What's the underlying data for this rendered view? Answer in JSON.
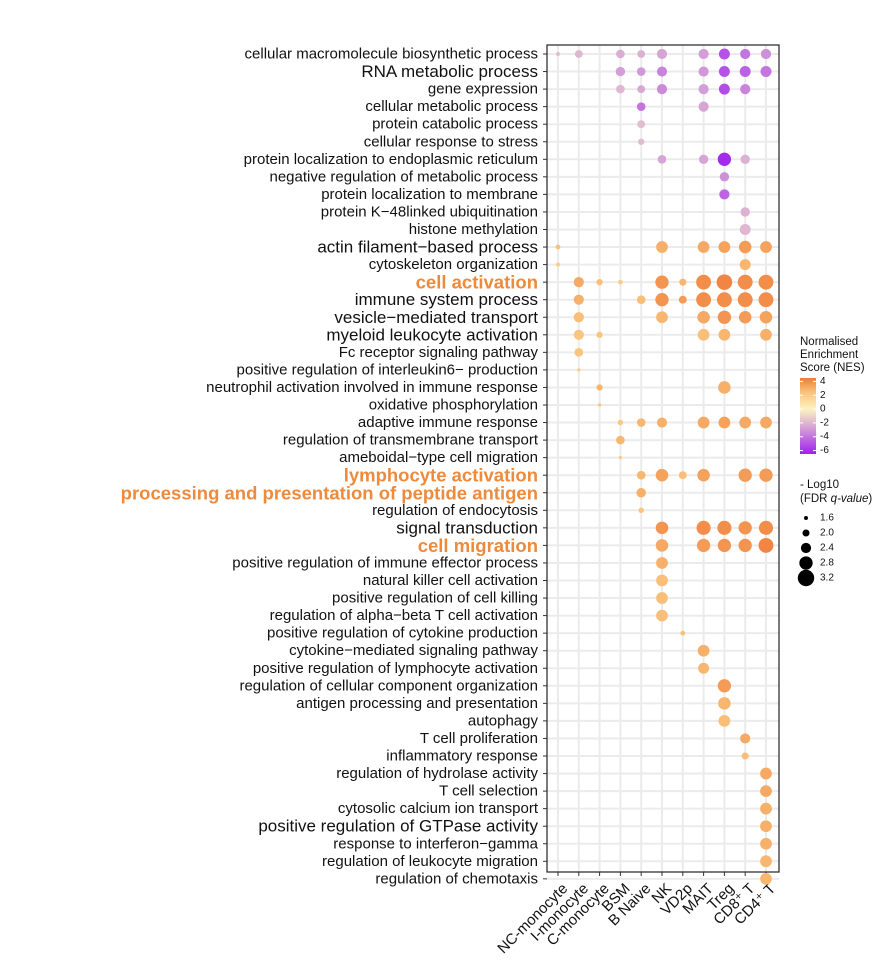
{
  "chart_data": {
    "type": "dot",
    "x_categories": [
      "NC-monocyte",
      "I-monocyte",
      "C-monocyte",
      "BSM",
      "B Naive",
      "NK",
      "VD2p",
      "MAIT",
      "Treg",
      "CD8⁺ T",
      "CD4⁺ T"
    ],
    "y_categories": [
      "cellular macromolecule biosynthetic process",
      "RNA metabolic process",
      "gene expression",
      "cellular metabolic process",
      "protein catabolic process",
      "cellular response to stress",
      "protein localization to endoplasmic reticulum",
      "negative regulation of metabolic process",
      "protein localization to membrane",
      "protein K−48linked ubiquitination",
      "histone methylation",
      "actin filament−based process",
      "cytoskeleton organization",
      "cell activation",
      "immune system process",
      "vesicle−mediated transport",
      "myeloid leukocyte activation",
      "Fc receptor signaling pathway",
      "positive regulation of interleukin6− production",
      "neutrophil activation involved in immune response",
      "oxidative phosphorylation",
      "adaptive immune response",
      "regulation of transmembrane transport",
      "ameboidal−type cell migration",
      "lymphocyte activation",
      "processing and presentation of peptide antigen",
      "regulation of endocytosis",
      "signal transduction",
      "cell migration",
      "positive regulation of immune effector process",
      "natural killer cell activation",
      "positive regulation of cell killing",
      "regulation of alpha−beta T cell activation",
      "positive regulation of cytokine production",
      "cytokine−mediated signaling pathway",
      "positive regulation of lymphocyte activation",
      "regulation of cellular component organization",
      "antigen processing and presentation",
      "autophagy",
      "T cell proliferation",
      "inflammatory response",
      "regulation of hydrolase activity",
      "T cell selection",
      "cytosolic calcium ion transport",
      "positive regulation of GTPase activity",
      "response to interferon−gamma",
      "regulation of leukocyte migration",
      "regulation of chemotaxis"
    ],
    "highlighted_terms": [
      "cell activation",
      "lymphocyte activation",
      "processing and presentation of peptide antigen",
      "cell migration"
    ],
    "legend": {
      "color_title": [
        "Normalised",
        "Enrichment",
        "Score (NES)"
      ],
      "color_ticks": [
        4,
        2,
        0,
        -2,
        -4,
        -6
      ],
      "color_range": [
        -6.5,
        4.5
      ],
      "size_title_prefix": "- Log10",
      "size_title_open": "(FDR ",
      "size_title_italic": "q-value",
      "size_title_close": ")",
      "size_ticks": [
        "1.6",
        "2.0",
        "2.4",
        "2.8",
        "3.2"
      ]
    },
    "colors": {
      "high": "#f07b3a",
      "mid_high": "#f9c27a",
      "zero": "#fdf3c2",
      "mid_low": "#d8a8d4",
      "low": "#a020f0",
      "highlight_label": "#ee8a3c",
      "grid": "#ebebeb"
    },
    "points": [
      {
        "y": 0,
        "x": 0,
        "nes": -1.8,
        "size": 1.4
      },
      {
        "y": 0,
        "x": 1,
        "nes": -2.0,
        "size": 1.9
      },
      {
        "y": 0,
        "x": 3,
        "nes": -2.3,
        "size": 2.0
      },
      {
        "y": 0,
        "x": 4,
        "nes": -2.2,
        "size": 1.9
      },
      {
        "y": 0,
        "x": 5,
        "nes": -2.6,
        "size": 2.2
      },
      {
        "y": 0,
        "x": 7,
        "nes": -2.8,
        "size": 2.2
      },
      {
        "y": 0,
        "x": 8,
        "nes": -5.0,
        "size": 2.3
      },
      {
        "y": 0,
        "x": 9,
        "nes": -4.0,
        "size": 2.2
      },
      {
        "y": 0,
        "x": 10,
        "nes": -3.2,
        "size": 2.2
      },
      {
        "y": 1,
        "x": 3,
        "nes": -2.8,
        "size": 2.1
      },
      {
        "y": 1,
        "x": 4,
        "nes": -3.0,
        "size": 2.0
      },
      {
        "y": 1,
        "x": 5,
        "nes": -3.6,
        "size": 2.2
      },
      {
        "y": 1,
        "x": 7,
        "nes": -3.0,
        "size": 2.2
      },
      {
        "y": 1,
        "x": 8,
        "nes": -5.0,
        "size": 2.3
      },
      {
        "y": 1,
        "x": 9,
        "nes": -4.6,
        "size": 2.3
      },
      {
        "y": 1,
        "x": 10,
        "nes": -4.0,
        "size": 2.3
      },
      {
        "y": 2,
        "x": 3,
        "nes": -2.0,
        "size": 2.0
      },
      {
        "y": 2,
        "x": 4,
        "nes": -2.5,
        "size": 1.9
      },
      {
        "y": 2,
        "x": 5,
        "nes": -3.4,
        "size": 2.2
      },
      {
        "y": 2,
        "x": 7,
        "nes": -2.8,
        "size": 2.2
      },
      {
        "y": 2,
        "x": 8,
        "nes": -5.2,
        "size": 2.3
      },
      {
        "y": 2,
        "x": 9,
        "nes": -3.6,
        "size": 2.2
      },
      {
        "y": 3,
        "x": 4,
        "nes": -4.0,
        "size": 2.0
      },
      {
        "y": 3,
        "x": 7,
        "nes": -2.6,
        "size": 2.2
      },
      {
        "y": 4,
        "x": 4,
        "nes": -1.8,
        "size": 1.9
      },
      {
        "y": 5,
        "x": 4,
        "nes": -1.9,
        "size": 1.7
      },
      {
        "y": 6,
        "x": 5,
        "nes": -2.6,
        "size": 2.0
      },
      {
        "y": 6,
        "x": 7,
        "nes": -2.6,
        "size": 2.1
      },
      {
        "y": 6,
        "x": 8,
        "nes": -6.2,
        "size": 2.6
      },
      {
        "y": 6,
        "x": 9,
        "nes": -2.2,
        "size": 2.1
      },
      {
        "y": 7,
        "x": 8,
        "nes": -3.2,
        "size": 2.1
      },
      {
        "y": 8,
        "x": 8,
        "nes": -4.5,
        "size": 2.2
      },
      {
        "y": 9,
        "x": 9,
        "nes": -2.2,
        "size": 2.1
      },
      {
        "y": 10,
        "x": 9,
        "nes": -2.0,
        "size": 2.3
      },
      {
        "y": 11,
        "x": 0,
        "nes": 2.5,
        "size": 1.5
      },
      {
        "y": 11,
        "x": 5,
        "nes": 3.0,
        "size": 2.4
      },
      {
        "y": 11,
        "x": 7,
        "nes": 3.2,
        "size": 2.4
      },
      {
        "y": 11,
        "x": 8,
        "nes": 3.4,
        "size": 2.4
      },
      {
        "y": 11,
        "x": 9,
        "nes": 3.6,
        "size": 2.5
      },
      {
        "y": 11,
        "x": 10,
        "nes": 3.4,
        "size": 2.4
      },
      {
        "y": 12,
        "x": 0,
        "nes": 2.0,
        "size": 1.4
      },
      {
        "y": 12,
        "x": 9,
        "nes": 2.8,
        "size": 2.3
      },
      {
        "y": 13,
        "x": 1,
        "nes": 3.2,
        "size": 2.2
      },
      {
        "y": 13,
        "x": 2,
        "nes": 2.6,
        "size": 1.7
      },
      {
        "y": 13,
        "x": 3,
        "nes": 2.0,
        "size": 1.5
      },
      {
        "y": 13,
        "x": 5,
        "nes": 3.8,
        "size": 2.6
      },
      {
        "y": 13,
        "x": 6,
        "nes": 2.8,
        "size": 1.8
      },
      {
        "y": 13,
        "x": 7,
        "nes": 4.0,
        "size": 2.8
      },
      {
        "y": 13,
        "x": 8,
        "nes": 4.2,
        "size": 2.9
      },
      {
        "y": 13,
        "x": 9,
        "nes": 4.0,
        "size": 2.8
      },
      {
        "y": 13,
        "x": 10,
        "nes": 4.0,
        "size": 2.8
      },
      {
        "y": 14,
        "x": 1,
        "nes": 3.0,
        "size": 2.2
      },
      {
        "y": 14,
        "x": 4,
        "nes": 2.6,
        "size": 2.0
      },
      {
        "y": 14,
        "x": 5,
        "nes": 3.8,
        "size": 2.6
      },
      {
        "y": 14,
        "x": 6,
        "nes": 3.6,
        "size": 1.9
      },
      {
        "y": 14,
        "x": 7,
        "nes": 4.0,
        "size": 2.8
      },
      {
        "y": 14,
        "x": 8,
        "nes": 4.0,
        "size": 2.8
      },
      {
        "y": 14,
        "x": 9,
        "nes": 4.0,
        "size": 2.8
      },
      {
        "y": 14,
        "x": 10,
        "nes": 4.0,
        "size": 2.8
      },
      {
        "y": 15,
        "x": 1,
        "nes": 2.6,
        "size": 2.2
      },
      {
        "y": 15,
        "x": 5,
        "nes": 2.8,
        "size": 2.4
      },
      {
        "y": 15,
        "x": 7,
        "nes": 3.2,
        "size": 2.5
      },
      {
        "y": 15,
        "x": 8,
        "nes": 3.8,
        "size": 2.6
      },
      {
        "y": 15,
        "x": 9,
        "nes": 3.6,
        "size": 2.5
      },
      {
        "y": 15,
        "x": 10,
        "nes": 3.4,
        "size": 2.5
      },
      {
        "y": 16,
        "x": 1,
        "nes": 2.4,
        "size": 2.2
      },
      {
        "y": 16,
        "x": 2,
        "nes": 2.4,
        "size": 1.7
      },
      {
        "y": 16,
        "x": 7,
        "nes": 2.6,
        "size": 2.4
      },
      {
        "y": 16,
        "x": 8,
        "nes": 2.8,
        "size": 2.4
      },
      {
        "y": 16,
        "x": 10,
        "nes": 3.0,
        "size": 2.4
      },
      {
        "y": 17,
        "x": 1,
        "nes": 2.4,
        "size": 2.0
      },
      {
        "y": 18,
        "x": 1,
        "nes": 2.2,
        "size": 1.3
      },
      {
        "y": 19,
        "x": 2,
        "nes": 2.8,
        "size": 1.7
      },
      {
        "y": 19,
        "x": 8,
        "nes": 3.0,
        "size": 2.5
      },
      {
        "y": 20,
        "x": 2,
        "nes": 2.4,
        "size": 1.2
      },
      {
        "y": 21,
        "x": 3,
        "nes": 2.2,
        "size": 1.6
      },
      {
        "y": 21,
        "x": 4,
        "nes": 2.8,
        "size": 2.0
      },
      {
        "y": 21,
        "x": 5,
        "nes": 3.0,
        "size": 2.2
      },
      {
        "y": 21,
        "x": 7,
        "nes": 3.2,
        "size": 2.4
      },
      {
        "y": 21,
        "x": 8,
        "nes": 3.4,
        "size": 2.4
      },
      {
        "y": 21,
        "x": 9,
        "nes": 3.2,
        "size": 2.4
      },
      {
        "y": 21,
        "x": 10,
        "nes": 3.2,
        "size": 2.4
      },
      {
        "y": 22,
        "x": 3,
        "nes": 2.8,
        "size": 2.0
      },
      {
        "y": 23,
        "x": 3,
        "nes": 2.2,
        "size": 1.2
      },
      {
        "y": 24,
        "x": 4,
        "nes": 2.8,
        "size": 2.0
      },
      {
        "y": 24,
        "x": 5,
        "nes": 3.4,
        "size": 2.5
      },
      {
        "y": 24,
        "x": 6,
        "nes": 2.6,
        "size": 1.9
      },
      {
        "y": 24,
        "x": 7,
        "nes": 3.4,
        "size": 2.5
      },
      {
        "y": 24,
        "x": 9,
        "nes": 3.6,
        "size": 2.6
      },
      {
        "y": 24,
        "x": 10,
        "nes": 3.6,
        "size": 2.6
      },
      {
        "y": 25,
        "x": 4,
        "nes": 3.0,
        "size": 2.1
      },
      {
        "y": 26,
        "x": 4,
        "nes": 2.4,
        "size": 1.6
      },
      {
        "y": 27,
        "x": 5,
        "nes": 3.8,
        "size": 2.5
      },
      {
        "y": 27,
        "x": 7,
        "nes": 4.0,
        "size": 2.7
      },
      {
        "y": 27,
        "x": 8,
        "nes": 4.0,
        "size": 2.7
      },
      {
        "y": 27,
        "x": 9,
        "nes": 3.8,
        "size": 2.6
      },
      {
        "y": 27,
        "x": 10,
        "nes": 4.0,
        "size": 2.7
      },
      {
        "y": 28,
        "x": 5,
        "nes": 3.2,
        "size": 2.5
      },
      {
        "y": 28,
        "x": 7,
        "nes": 3.6,
        "size": 2.6
      },
      {
        "y": 28,
        "x": 8,
        "nes": 3.8,
        "size": 2.6
      },
      {
        "y": 28,
        "x": 9,
        "nes": 3.8,
        "size": 2.6
      },
      {
        "y": 28,
        "x": 10,
        "nes": 4.2,
        "size": 2.8
      },
      {
        "y": 29,
        "x": 5,
        "nes": 3.0,
        "size": 2.4
      },
      {
        "y": 30,
        "x": 5,
        "nes": 2.6,
        "size": 2.4
      },
      {
        "y": 31,
        "x": 5,
        "nes": 2.6,
        "size": 2.4
      },
      {
        "y": 32,
        "x": 5,
        "nes": 2.6,
        "size": 2.4
      },
      {
        "y": 33,
        "x": 6,
        "nes": 2.6,
        "size": 1.5
      },
      {
        "y": 34,
        "x": 7,
        "nes": 3.0,
        "size": 2.4
      },
      {
        "y": 35,
        "x": 7,
        "nes": 2.8,
        "size": 2.3
      },
      {
        "y": 36,
        "x": 8,
        "nes": 3.6,
        "size": 2.6
      },
      {
        "y": 37,
        "x": 8,
        "nes": 2.8,
        "size": 2.5
      },
      {
        "y": 38,
        "x": 8,
        "nes": 2.6,
        "size": 2.4
      },
      {
        "y": 39,
        "x": 9,
        "nes": 3.2,
        "size": 2.2
      },
      {
        "y": 40,
        "x": 9,
        "nes": 2.6,
        "size": 1.8
      },
      {
        "y": 41,
        "x": 10,
        "nes": 3.2,
        "size": 2.4
      },
      {
        "y": 42,
        "x": 10,
        "nes": 3.2,
        "size": 2.4
      },
      {
        "y": 43,
        "x": 10,
        "nes": 3.0,
        "size": 2.4
      },
      {
        "y": 44,
        "x": 10,
        "nes": 3.0,
        "size": 2.4
      },
      {
        "y": 45,
        "x": 10,
        "nes": 3.0,
        "size": 2.4
      },
      {
        "y": 46,
        "x": 10,
        "nes": 2.8,
        "size": 2.4
      },
      {
        "y": 47,
        "x": 10,
        "nes": 2.8,
        "size": 2.4
      }
    ]
  }
}
